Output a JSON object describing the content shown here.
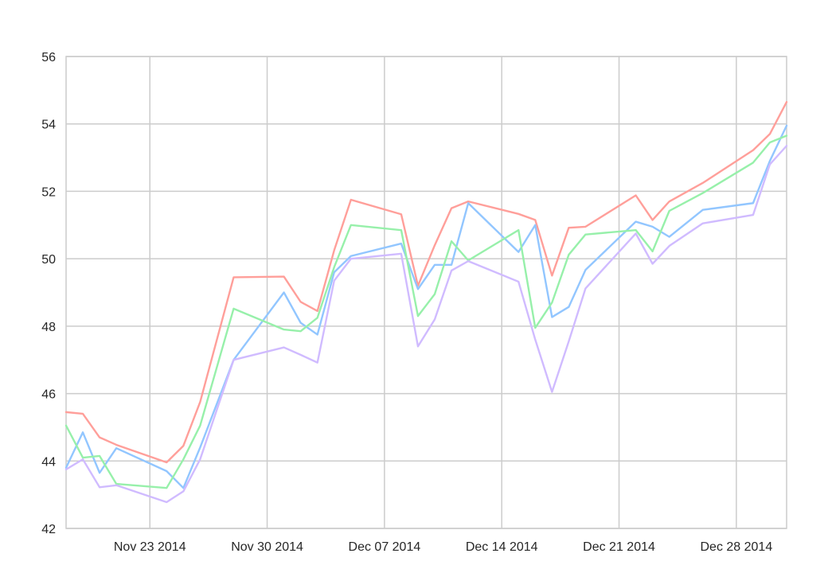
{
  "chart_data": {
    "type": "line",
    "title": "",
    "xlabel": "",
    "ylabel": "",
    "grid": true,
    "legend": "none",
    "ylim": [
      42,
      56
    ],
    "xlim": [
      "2014-11-18",
      "2014-12-31"
    ],
    "y_ticks": [
      42,
      44,
      46,
      48,
      50,
      52,
      54,
      56
    ],
    "x_ticks": [
      {
        "date": "2014-11-23",
        "label": "Nov 23 2014"
      },
      {
        "date": "2014-11-30",
        "label": "Nov 30 2014"
      },
      {
        "date": "2014-12-07",
        "label": "Dec 07 2014"
      },
      {
        "date": "2014-12-14",
        "label": "Dec 14 2014"
      },
      {
        "date": "2014-12-21",
        "label": "Dec 21 2014"
      },
      {
        "date": "2014-12-28",
        "label": "Dec 28 2014"
      }
    ],
    "x": [
      "2014-11-18",
      "2014-11-19",
      "2014-11-20",
      "2014-11-21",
      "2014-11-24",
      "2014-11-25",
      "2014-11-26",
      "2014-11-28",
      "2014-12-01",
      "2014-12-02",
      "2014-12-03",
      "2014-12-04",
      "2014-12-05",
      "2014-12-08",
      "2014-12-09",
      "2014-12-10",
      "2014-12-11",
      "2014-12-12",
      "2014-12-15",
      "2014-12-16",
      "2014-12-17",
      "2014-12-18",
      "2014-12-19",
      "2014-12-22",
      "2014-12-23",
      "2014-12-24",
      "2014-12-26",
      "2014-12-29",
      "2014-12-30",
      "2014-12-31"
    ],
    "series": [
      {
        "color": "#ff9f9a",
        "values": [
          45.45,
          45.4,
          44.7,
          44.48,
          43.96,
          44.45,
          45.75,
          49.45,
          49.47,
          48.72,
          48.45,
          50.25,
          51.75,
          51.32,
          49.2,
          50.4,
          51.5,
          51.7,
          51.33,
          51.15,
          49.5,
          50.92,
          50.95,
          51.88,
          51.15,
          51.7,
          52.25,
          53.22,
          53.7,
          54.65
        ]
      },
      {
        "color": "#92c6ff",
        "values": [
          43.8,
          44.85,
          43.65,
          44.38,
          43.7,
          43.2,
          44.4,
          47.0,
          49.0,
          48.1,
          47.75,
          49.6,
          50.08,
          50.45,
          49.1,
          49.82,
          49.82,
          51.65,
          50.2,
          51.0,
          48.27,
          48.57,
          49.67,
          51.1,
          50.95,
          50.65,
          51.45,
          51.65,
          52.9,
          53.95
        ]
      },
      {
        "color": "#97f0aa",
        "values": [
          45.05,
          44.1,
          44.15,
          43.32,
          43.2,
          44.05,
          45.05,
          48.52,
          47.9,
          47.85,
          48.25,
          49.75,
          51.0,
          50.85,
          48.3,
          48.95,
          50.52,
          49.95,
          50.85,
          47.95,
          48.7,
          50.12,
          50.72,
          50.85,
          50.22,
          51.42,
          51.95,
          52.85,
          53.45,
          53.65
        ]
      },
      {
        "color": "#d0bbff",
        "values": [
          43.75,
          44.05,
          43.22,
          43.28,
          42.78,
          43.1,
          44.05,
          47.0,
          47.37,
          47.15,
          46.92,
          49.35,
          50.0,
          50.15,
          47.4,
          48.2,
          49.65,
          49.93,
          49.32,
          47.6,
          46.05,
          47.55,
          49.12,
          50.75,
          49.85,
          50.38,
          51.05,
          51.3,
          52.8,
          53.35
        ]
      }
    ]
  }
}
